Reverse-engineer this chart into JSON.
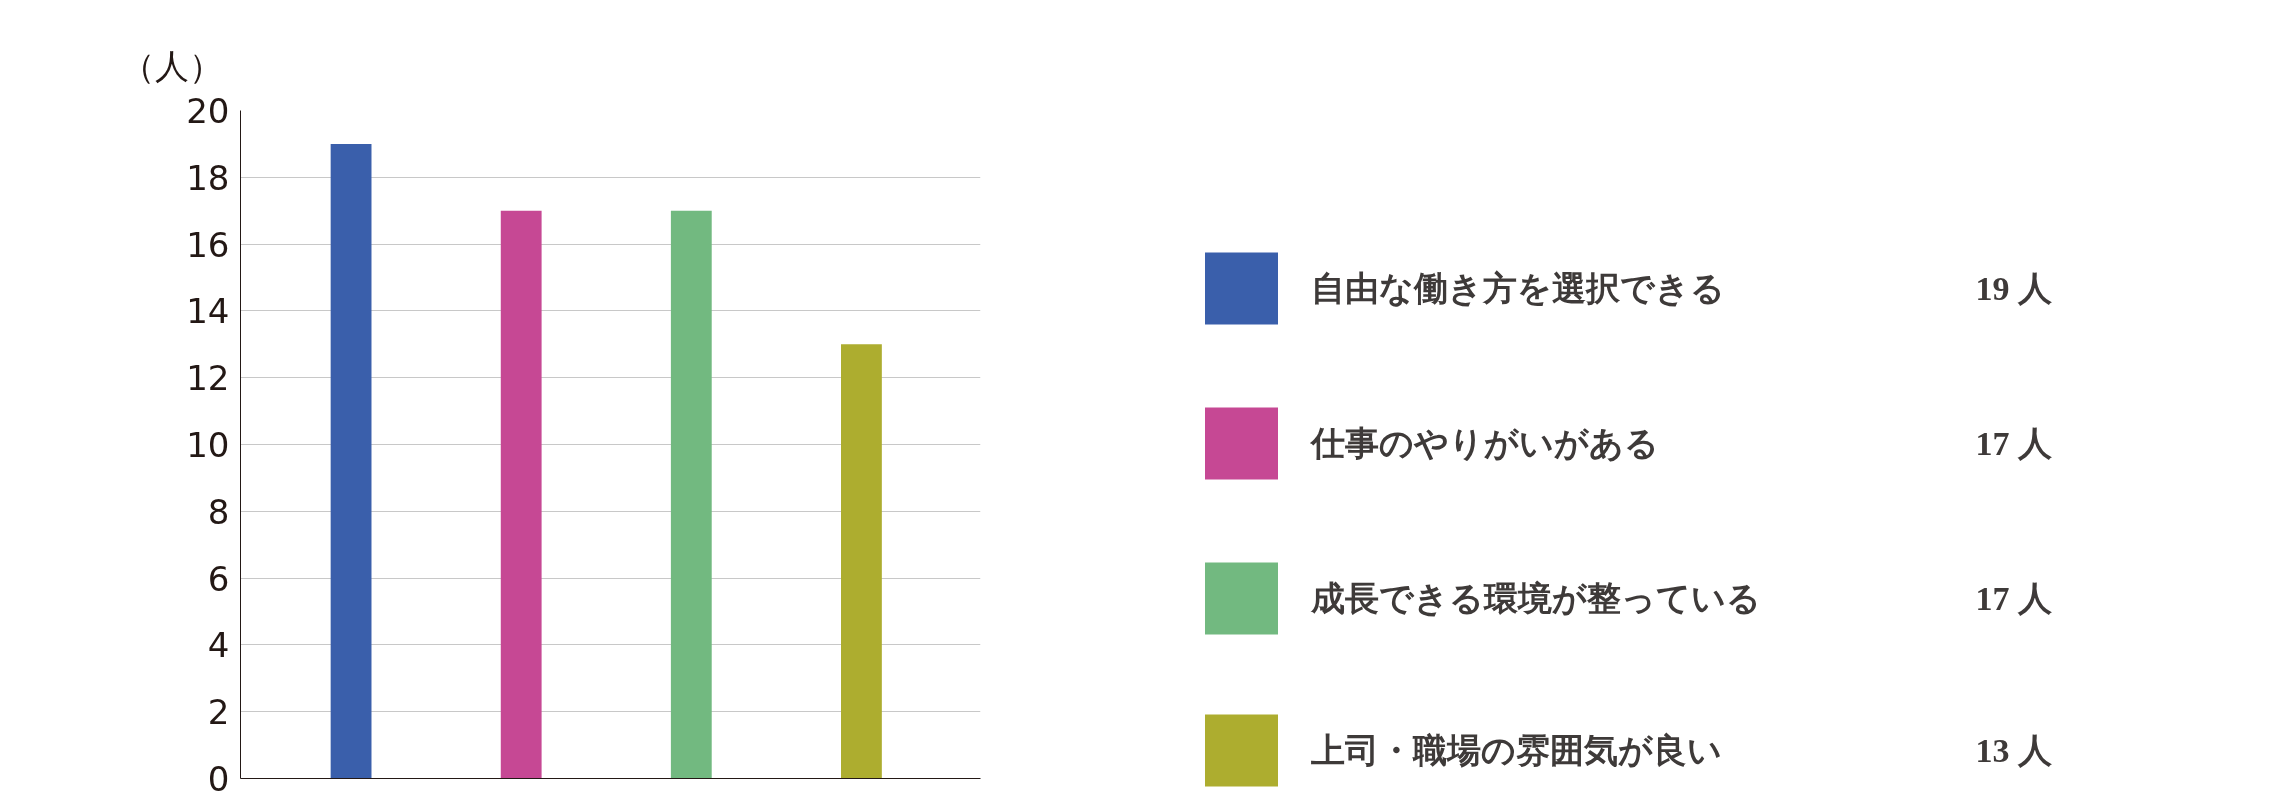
{
  "chart_data": {
    "type": "bar",
    "ylabel": "（人）",
    "categories": [
      null,
      null,
      null,
      null
    ],
    "series": [
      {
        "name": "自由な働き方を選択できる",
        "color": "#3a5fab",
        "values": [
          19,
          null,
          null,
          null
        ]
      },
      {
        "name": "仕事のやりがいがある",
        "color": "#c64894",
        "values": [
          null,
          17,
          null,
          null
        ]
      },
      {
        "name": "成長できる環境が整っている",
        "color": "#72b980",
        "values": [
          null,
          null,
          17,
          null
        ]
      },
      {
        "name": "上司・職場の雰囲気が良い",
        "color": "#adad2f",
        "values": [
          null,
          null,
          null,
          13
        ]
      }
    ],
    "annotations": [
      "19 人",
      "17 人",
      "17 人",
      "13 人"
    ],
    "ylim": [
      0,
      20
    ],
    "yticks": [
      0,
      2,
      4,
      6,
      8,
      10,
      12,
      14,
      16,
      18,
      20
    ],
    "grid": "y",
    "legend": "right"
  }
}
